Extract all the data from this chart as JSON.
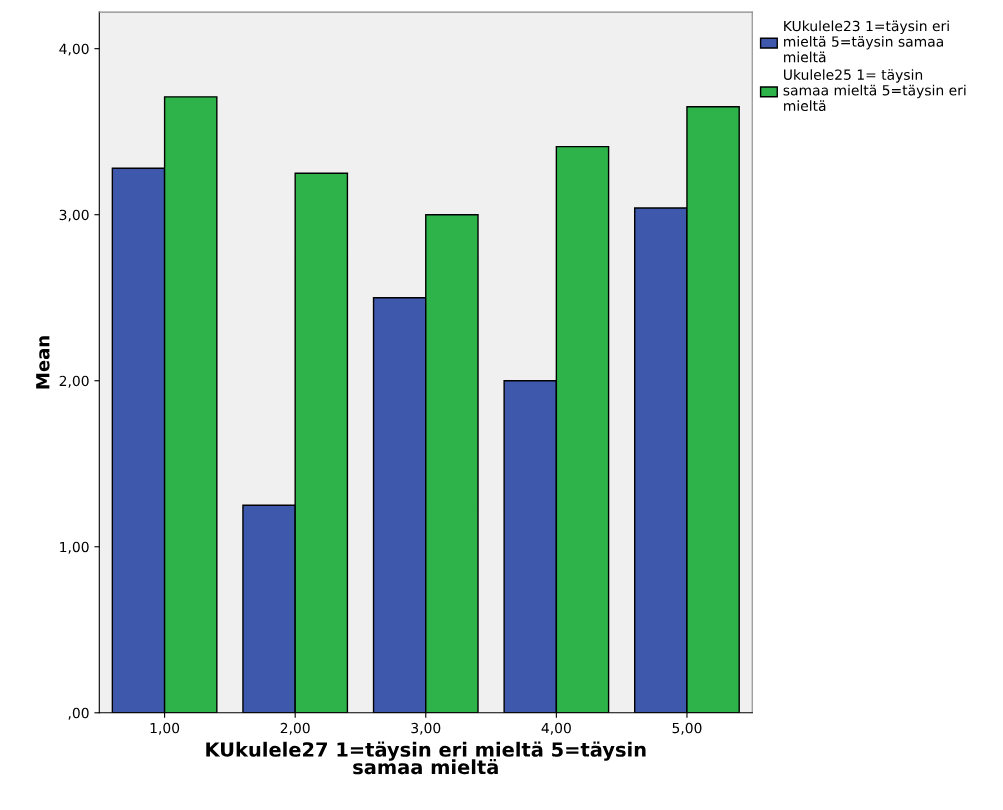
{
  "chart_data": {
    "type": "bar",
    "xlabel": "KUkulele27 1=täysin eri mieltä 5=täysin\nsamaa mieltä",
    "ylabel": "Mean",
    "categories": [
      "1,00",
      "2,00",
      "3,00",
      "4,00",
      "5,00"
    ],
    "series": [
      {
        "name": "KUkulele23 1=täysin eri\nmieltä 5=täysin samaa\nmieltä",
        "color": "#3e58ac",
        "values": [
          3.28,
          1.25,
          2.5,
          2.0,
          3.04
        ]
      },
      {
        "name": "Ukulele25 1= täysin\nsamaa mieltä 5=täysin eri\nmieltä",
        "color": "#2db34a",
        "values": [
          3.71,
          3.25,
          3.0,
          3.41,
          3.65
        ]
      }
    ],
    "ylim": [
      0,
      4.22
    ],
    "yticks": [
      {
        "value": 0,
        "label": ",00"
      },
      {
        "value": 1,
        "label": "1,00"
      },
      {
        "value": 2,
        "label": "2,00"
      },
      {
        "value": 3,
        "label": "3,00"
      },
      {
        "value": 4,
        "label": "4,00"
      }
    ],
    "grid": false,
    "legend": "top right"
  }
}
